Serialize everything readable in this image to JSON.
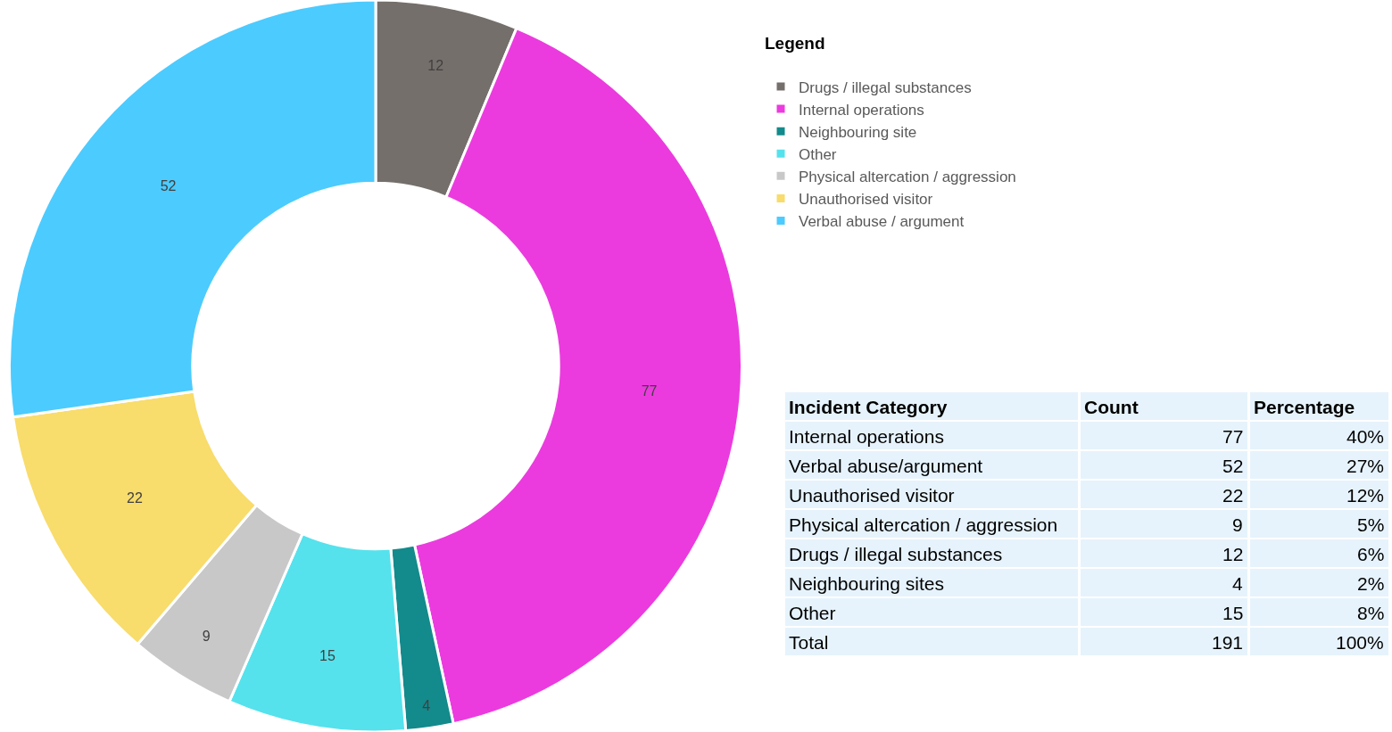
{
  "chart_data": [
    {
      "type": "donut",
      "legend_title": "Legend",
      "categories": [
        "Drugs / illegal substances",
        "Internal operations",
        "Neighbouring site",
        "Other",
        "Physical altercation / aggression",
        "Unauthorised visitor",
        "Verbal abuse / argument"
      ],
      "values": [
        12,
        77,
        4,
        15,
        9,
        22,
        52
      ],
      "colors": [
        "#756f6c",
        "#eb3bde",
        "#138a8c",
        "#55e2ec",
        "#c8c8c8",
        "#f8dc6c",
        "#4ccbff"
      ],
      "data_labels": true,
      "legend": "right"
    },
    {
      "type": "other",
      "annotations": [
        "Incident Category",
        "Count",
        "Percentage",
        "Internal operations",
        "77",
        "40%",
        "Verbal abuse/argument",
        "52",
        "27%",
        "Unauthorised visitor",
        "22",
        "12%",
        "Physical altercation / aggression",
        "9",
        "5%",
        "Drugs / illegal substances",
        "12",
        "6%",
        "Neighbouring sites",
        "4",
        "2%",
        "Other",
        "15",
        "8%",
        "Total",
        "191",
        "100%"
      ]
    }
  ]
}
